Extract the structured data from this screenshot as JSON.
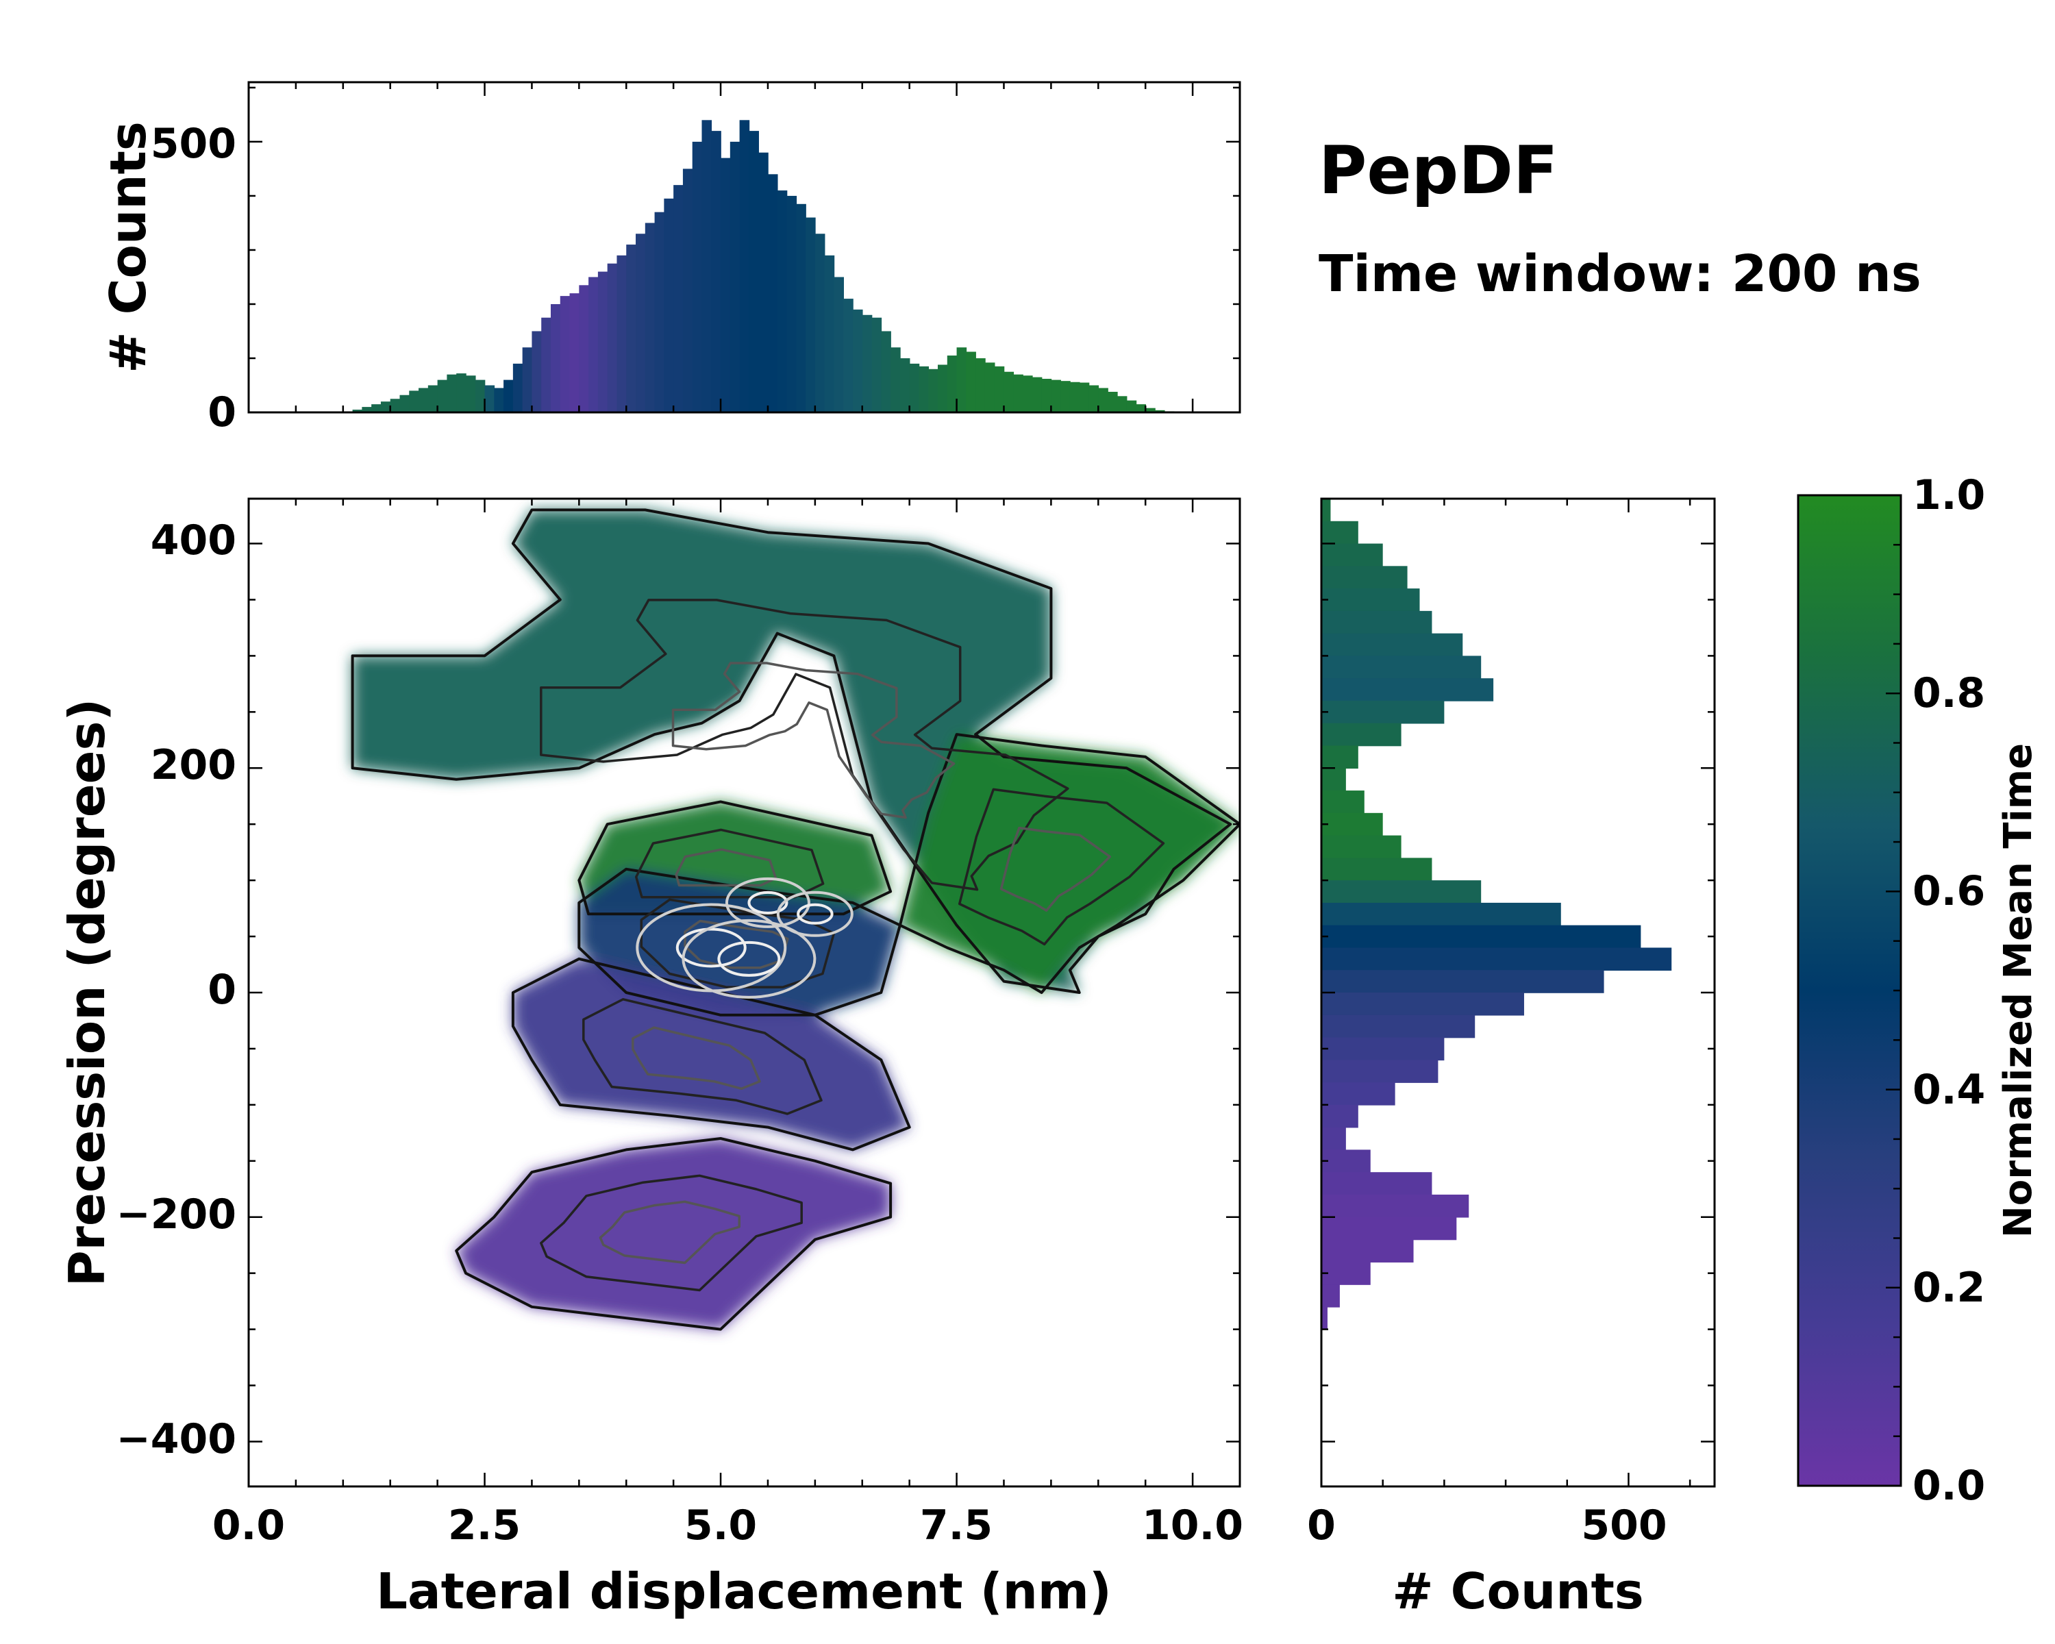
{
  "colors": {
    "colormap": [
      "#6a35a6",
      "#453c95",
      "#283f7e",
      "#003a6a",
      "#15586a",
      "#1a7040",
      "#228b22"
    ]
  },
  "annotation": {
    "title": "PepDF",
    "subtitle": "Time window: 200 ns"
  },
  "chart_data": [
    {
      "id": "top-histogram",
      "type": "bar",
      "title": "",
      "xlabel": "",
      "ylabel": "# Counts",
      "xlim": [
        0,
        10.5
      ],
      "ylim": [
        0,
        610
      ],
      "yticks": [
        0,
        500
      ],
      "ytick_labels": [
        "0",
        "500"
      ],
      "color_by": "Normalized Mean Time",
      "bin_width": 0.1,
      "x": [
        1.1,
        1.2,
        1.3,
        1.4,
        1.5,
        1.6,
        1.7,
        1.8,
        1.9,
        2.0,
        2.1,
        2.2,
        2.3,
        2.4,
        2.5,
        2.6,
        2.7,
        2.8,
        2.9,
        3.0,
        3.1,
        3.2,
        3.3,
        3.4,
        3.5,
        3.6,
        3.7,
        3.8,
        3.9,
        4.0,
        4.1,
        4.2,
        4.3,
        4.4,
        4.5,
        4.6,
        4.7,
        4.8,
        4.9,
        5.0,
        5.1,
        5.2,
        5.3,
        5.4,
        5.5,
        5.6,
        5.7,
        5.8,
        5.9,
        6.0,
        6.1,
        6.2,
        6.3,
        6.4,
        6.5,
        6.6,
        6.7,
        6.8,
        6.9,
        7.0,
        7.1,
        7.2,
        7.3,
        7.4,
        7.5,
        7.6,
        7.7,
        7.8,
        7.9,
        8.0,
        8.1,
        8.2,
        8.3,
        8.4,
        8.5,
        8.6,
        8.7,
        8.8,
        8.9,
        9.0,
        9.1,
        9.2,
        9.3,
        9.4,
        9.5,
        9.6,
        9.7,
        9.8,
        9.9
      ],
      "values": [
        5,
        10,
        15,
        20,
        25,
        32,
        40,
        45,
        50,
        60,
        70,
        72,
        68,
        60,
        50,
        45,
        60,
        90,
        120,
        150,
        175,
        200,
        215,
        220,
        235,
        250,
        260,
        275,
        290,
        310,
        330,
        350,
        370,
        395,
        420,
        450,
        500,
        540,
        520,
        470,
        500,
        540,
        520,
        480,
        440,
        410,
        400,
        385,
        360,
        330,
        290,
        250,
        210,
        190,
        180,
        175,
        150,
        120,
        100,
        90,
        85,
        80,
        88,
        105,
        120,
        112,
        100,
        92,
        85,
        75,
        70,
        68,
        65,
        62,
        60,
        58,
        56,
        55,
        50,
        45,
        38,
        30,
        22,
        15,
        8,
        4,
        2,
        1,
        0
      ],
      "colors_norm": [
        0.78,
        0.78,
        0.78,
        0.78,
        0.78,
        0.78,
        0.78,
        0.78,
        0.78,
        0.78,
        0.78,
        0.78,
        0.78,
        0.76,
        0.65,
        0.55,
        0.5,
        0.45,
        0.38,
        0.3,
        0.22,
        0.16,
        0.12,
        0.1,
        0.12,
        0.16,
        0.2,
        0.25,
        0.3,
        0.34,
        0.36,
        0.38,
        0.4,
        0.42,
        0.42,
        0.43,
        0.44,
        0.45,
        0.46,
        0.47,
        0.48,
        0.49,
        0.5,
        0.5,
        0.5,
        0.51,
        0.52,
        0.54,
        0.57,
        0.6,
        0.62,
        0.64,
        0.66,
        0.68,
        0.7,
        0.72,
        0.74,
        0.76,
        0.77,
        0.78,
        0.8,
        0.82,
        0.84,
        0.86,
        0.88,
        0.9,
        0.9,
        0.9,
        0.9,
        0.9,
        0.9,
        0.9,
        0.9,
        0.9,
        0.9,
        0.9,
        0.9,
        0.9,
        0.9,
        0.9,
        0.9,
        0.9,
        0.9,
        0.9,
        0.9,
        0.9,
        0.9,
        0.9,
        0.9
      ]
    },
    {
      "id": "main-density-map",
      "type": "heatmap",
      "title": "",
      "xlabel": "Lateral displacement (nm)",
      "ylabel": "Precession (degrees)",
      "xlim": [
        0,
        10.5
      ],
      "ylim": [
        -440,
        440
      ],
      "xticks": [
        0.0,
        2.5,
        5.0,
        7.5,
        10.0
      ],
      "xtick_labels": [
        "0.0",
        "2.5",
        "5.0",
        "7.5",
        "10.0"
      ],
      "yticks": [
        -400,
        -200,
        0,
        200,
        400
      ],
      "ytick_labels": [
        "−400",
        "−200",
        "0",
        "200",
        "400"
      ],
      "color_by": "Normalized Mean Time",
      "regions": [
        {
          "name": "upper-band",
          "polygon": [
            [
              1.1,
              200
            ],
            [
              1.1,
              300
            ],
            [
              2.5,
              300
            ],
            [
              3.3,
              350
            ],
            [
              2.8,
              400
            ],
            [
              3.0,
              430
            ],
            [
              4.2,
              430
            ],
            [
              5.5,
              410
            ],
            [
              7.2,
              400
            ],
            [
              8.5,
              360
            ],
            [
              8.5,
              280
            ],
            [
              7.7,
              230
            ],
            [
              8.0,
              210
            ],
            [
              9.3,
              200
            ],
            [
              10.4,
              150
            ],
            [
              9.8,
              110
            ],
            [
              9.5,
              70
            ],
            [
              9.0,
              50
            ],
            [
              8.7,
              20
            ],
            [
              8.8,
              0
            ],
            [
              8.0,
              10
            ],
            [
              7.5,
              60
            ],
            [
              6.6,
              170
            ],
            [
              6.2,
              300
            ],
            [
              5.6,
              320
            ],
            [
              5.2,
              260
            ],
            [
              4.8,
              240
            ],
            [
              4.3,
              230
            ],
            [
              3.5,
              200
            ],
            [
              2.2,
              190
            ]
          ],
          "norm_time": 0.74
        },
        {
          "name": "upper-right-lobe",
          "polygon": [
            [
              7.5,
              230
            ],
            [
              8.4,
              220
            ],
            [
              9.5,
              210
            ],
            [
              10.5,
              150
            ],
            [
              9.9,
              100
            ],
            [
              9.2,
              60
            ],
            [
              8.8,
              40
            ],
            [
              8.4,
              0
            ],
            [
              8.0,
              20
            ],
            [
              7.4,
              40
            ],
            [
              6.9,
              60
            ],
            [
              7.2,
              160
            ]
          ],
          "norm_time": 0.93
        },
        {
          "name": "central-green-cap",
          "polygon": [
            [
              3.5,
              100
            ],
            [
              3.8,
              150
            ],
            [
              5.0,
              170
            ],
            [
              6.6,
              140
            ],
            [
              6.8,
              90
            ],
            [
              6.3,
              70
            ],
            [
              4.5,
              70
            ],
            [
              3.6,
              70
            ]
          ],
          "norm_time": 0.9
        },
        {
          "name": "central-blue-core",
          "polygon": [
            [
              3.5,
              80
            ],
            [
              4.0,
              110
            ],
            [
              5.5,
              90
            ],
            [
              6.4,
              80
            ],
            [
              6.9,
              60
            ],
            [
              6.7,
              0
            ],
            [
              6.0,
              -20
            ],
            [
              5.0,
              -20
            ],
            [
              4.0,
              0
            ],
            [
              3.5,
              40
            ]
          ],
          "norm_time": 0.42
        },
        {
          "name": "lower-purple-core",
          "polygon": [
            [
              2.8,
              0
            ],
            [
              3.5,
              30
            ],
            [
              4.5,
              10
            ],
            [
              6.0,
              -20
            ],
            [
              6.7,
              -60
            ],
            [
              7.0,
              -120
            ],
            [
              6.4,
              -140
            ],
            [
              5.5,
              -120
            ],
            [
              4.5,
              -110
            ],
            [
              3.3,
              -100
            ],
            [
              3.0,
              -60
            ],
            [
              2.8,
              -30
            ]
          ],
          "norm_time": 0.2
        },
        {
          "name": "bottom-lobe",
          "polygon": [
            [
              2.2,
              -230
            ],
            [
              2.6,
              -200
            ],
            [
              3.0,
              -160
            ],
            [
              4.0,
              -140
            ],
            [
              5.0,
              -130
            ],
            [
              6.0,
              -150
            ],
            [
              6.8,
              -170
            ],
            [
              6.8,
              -200
            ],
            [
              6.0,
              -220
            ],
            [
              5.5,
              -260
            ],
            [
              5.0,
              -300
            ],
            [
              4.0,
              -290
            ],
            [
              3.0,
              -280
            ],
            [
              2.3,
              -250
            ]
          ],
          "norm_time": 0.07
        }
      ]
    },
    {
      "id": "right-histogram",
      "type": "bar",
      "orientation": "horizontal",
      "title": "",
      "xlabel": "# Counts",
      "ylabel": "",
      "xlim": [
        0,
        640
      ],
      "ylim": [
        -440,
        440
      ],
      "xticks": [
        0,
        500
      ],
      "xtick_labels": [
        "0",
        "500"
      ],
      "color_by": "Normalized Mean Time",
      "bin_width": 20,
      "y": [
        430,
        410,
        390,
        370,
        350,
        330,
        310,
        290,
        270,
        250,
        230,
        210,
        190,
        170,
        150,
        130,
        110,
        90,
        70,
        50,
        30,
        10,
        -10,
        -30,
        -50,
        -70,
        -90,
        -110,
        -130,
        -150,
        -170,
        -190,
        -210,
        -230,
        -250,
        -270,
        -290
      ],
      "values": [
        15,
        60,
        100,
        140,
        160,
        180,
        230,
        260,
        280,
        200,
        130,
        60,
        40,
        70,
        100,
        130,
        180,
        260,
        390,
        520,
        570,
        460,
        330,
        250,
        200,
        190,
        120,
        60,
        40,
        80,
        180,
        240,
        220,
        150,
        80,
        30,
        10
      ],
      "colors_norm": [
        0.82,
        0.8,
        0.78,
        0.76,
        0.74,
        0.72,
        0.7,
        0.68,
        0.66,
        0.72,
        0.78,
        0.84,
        0.85,
        0.88,
        0.9,
        0.88,
        0.85,
        0.75,
        0.6,
        0.5,
        0.45,
        0.38,
        0.32,
        0.28,
        0.24,
        0.2,
        0.17,
        0.14,
        0.12,
        0.1,
        0.08,
        0.06,
        0.05,
        0.05,
        0.05,
        0.05,
        0.05
      ]
    },
    {
      "id": "colorbar",
      "type": "heatmap",
      "title": "",
      "ylabel": "Normalized Mean Time",
      "ylim": [
        0,
        1
      ],
      "yticks": [
        0.0,
        0.2,
        0.4,
        0.6,
        0.8,
        1.0
      ],
      "ytick_labels": [
        "0.0",
        "0.2",
        "0.4",
        "0.6",
        "0.8",
        "1.0"
      ]
    }
  ]
}
